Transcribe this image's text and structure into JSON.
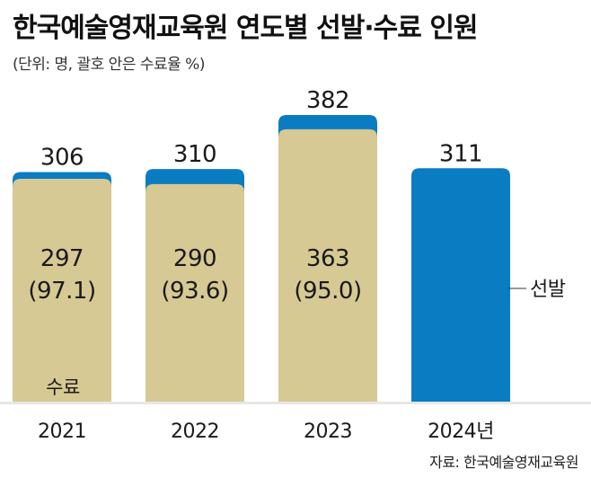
{
  "title": "한국예술영재교육원 연도별 선발·수료 인원",
  "subtitle": "(단위: 명, 괄호 안은 수료율 %)",
  "source": "자료: 한국예술영재교육원",
  "colors": {
    "selected": "#0a7cc1",
    "completed": "#d6c994",
    "gridline": "#e7e7e7",
    "text": "#1a1a1a"
  },
  "chart_data": {
    "type": "bar",
    "categories": [
      "2021",
      "2022",
      "2023",
      "2024년"
    ],
    "series": [
      {
        "name": "선발",
        "values": [
          306,
          310,
          382,
          311
        ]
      },
      {
        "name": "수료",
        "values": [
          297,
          290,
          363,
          null
        ]
      }
    ],
    "selected_labels": [
      "306",
      "310",
      "382",
      "311"
    ],
    "completed_labels": [
      "297",
      "290",
      "363",
      ""
    ],
    "completion_rate_labels": [
      "(97.1)",
      "(93.6)",
      "(95.0)",
      ""
    ],
    "legend": {
      "selected": "선발",
      "completed": "수료"
    },
    "ylim": [
      0,
      382
    ],
    "xlabel": "",
    "ylabel": ""
  }
}
